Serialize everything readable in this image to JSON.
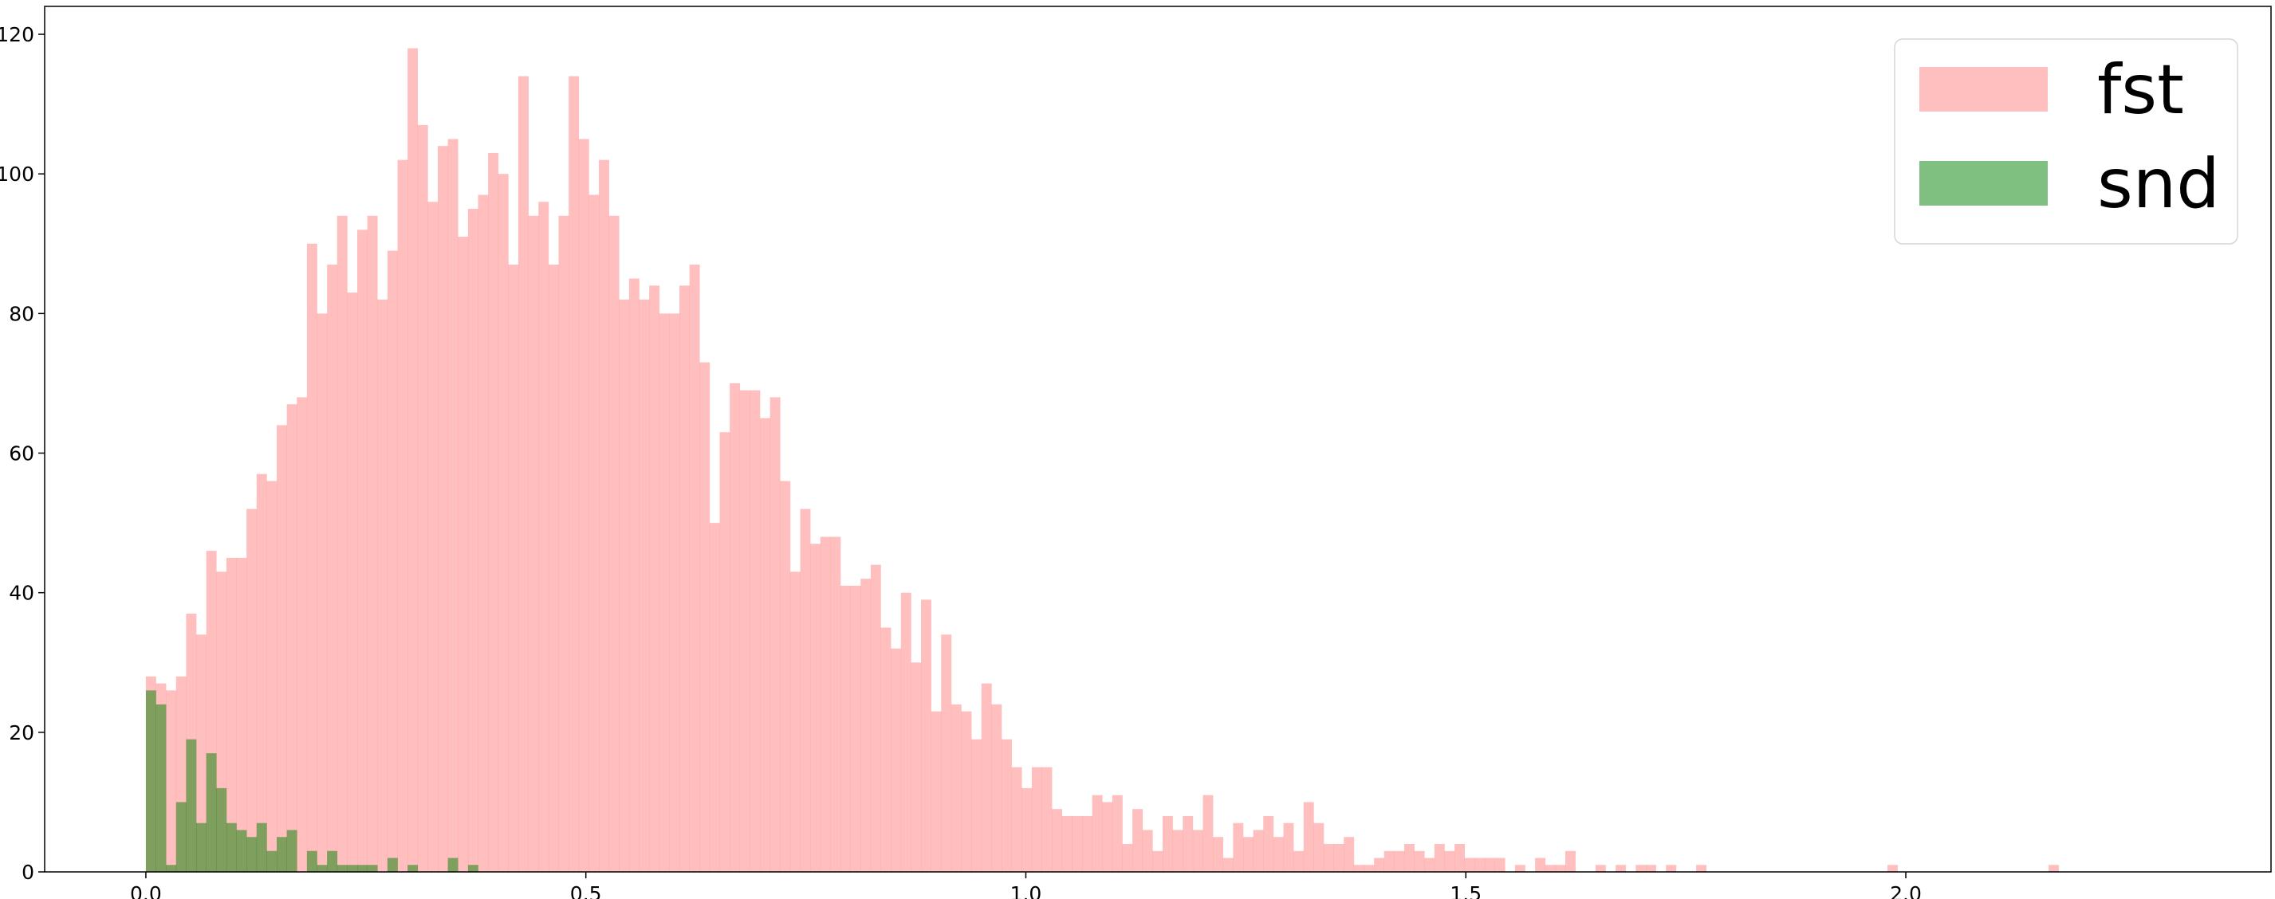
{
  "chart_data": {
    "type": "bar",
    "subtype": "overlapping-histogram",
    "title": "",
    "xlabel": "",
    "ylabel": "",
    "xlim": [
      -0.115,
      2.415
    ],
    "ylim": [
      0,
      124
    ],
    "xticks": [
      0.0,
      0.5,
      1.0,
      1.5,
      2.0
    ],
    "xtick_labels": [
      "0.0",
      "0.5",
      "1.0",
      "1.5",
      "2.0"
    ],
    "yticks": [
      0,
      20,
      40,
      60,
      80,
      100,
      120
    ],
    "ytick_labels": [
      "0",
      "20",
      "40",
      "60",
      "80",
      "100",
      "120"
    ],
    "grid": false,
    "legend_position": "top-right",
    "series": [
      {
        "name": "fst",
        "color": "#ff8080",
        "bin_start": 0.0,
        "bin_width": 0.01144,
        "values": [
          28,
          27,
          26,
          28,
          37,
          34,
          46,
          43,
          45,
          45,
          52,
          57,
          56,
          64,
          67,
          68,
          90,
          80,
          87,
          94,
          83,
          92,
          94,
          82,
          89,
          102,
          118,
          107,
          96,
          104,
          105,
          91,
          95,
          97,
          103,
          100,
          87,
          114,
          94,
          96,
          87,
          94,
          114,
          105,
          97,
          102,
          94,
          82,
          85,
          82,
          84,
          80,
          80,
          84,
          87,
          73,
          50,
          63,
          70,
          69,
          69,
          65,
          68,
          56,
          43,
          52,
          47,
          48,
          48,
          41,
          41,
          42,
          44,
          35,
          32,
          40,
          30,
          39,
          23,
          34,
          24,
          23,
          19,
          27,
          24,
          19,
          15,
          12,
          15,
          15,
          9,
          8,
          8,
          8,
          11,
          10,
          11,
          4,
          9,
          6,
          3,
          8,
          6,
          8,
          6,
          11,
          5,
          2,
          7,
          5,
          6,
          8,
          5,
          7,
          3,
          10,
          7,
          4,
          4,
          5,
          1,
          1,
          2,
          3,
          3,
          4,
          3,
          2,
          4,
          3,
          4,
          2,
          2,
          2,
          2,
          0,
          1,
          0,
          2,
          1,
          1,
          3,
          0,
          0,
          1,
          0,
          1,
          0,
          1,
          1,
          0,
          1,
          0,
          0,
          1,
          0,
          0,
          0,
          0,
          0,
          0,
          0,
          0,
          0,
          0,
          0,
          0,
          0,
          0,
          0,
          0,
          0,
          0,
          1,
          0,
          0,
          0,
          0,
          0,
          0,
          0,
          0,
          0,
          0,
          0,
          0,
          0,
          0,
          0,
          1,
          0,
          0,
          0,
          0,
          0,
          0,
          0,
          0,
          0,
          0,
          0,
          0,
          0,
          0,
          0,
          0,
          0,
          0,
          0,
          0,
          0,
          0,
          0,
          0,
          0,
          0,
          0,
          0,
          0,
          0,
          0,
          0,
          0,
          0,
          0,
          0,
          0,
          0,
          1
        ]
      },
      {
        "name": "snd",
        "color": "#008000",
        "bin_start": 0.0,
        "bin_width": 0.01144,
        "values": [
          26,
          24,
          1,
          10,
          19,
          7,
          17,
          12,
          7,
          6,
          5,
          7,
          3,
          5,
          6,
          0,
          3,
          1,
          3,
          1,
          1,
          1,
          1,
          0,
          2,
          0,
          1,
          0,
          0,
          0,
          2,
          0,
          1,
          0,
          0,
          0
        ]
      }
    ]
  }
}
